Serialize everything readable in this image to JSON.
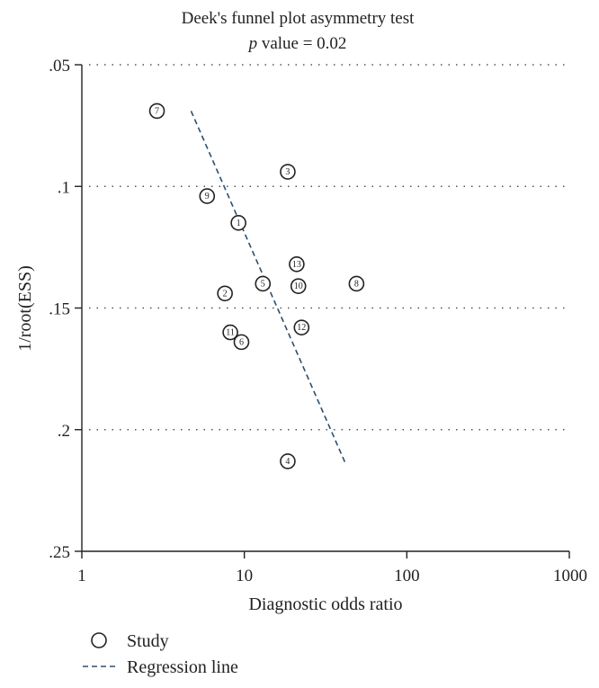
{
  "chart_data": {
    "type": "scatter",
    "title": "Deek's funnel plot asymmetry test",
    "subtitle_italic": "p",
    "subtitle_rest": " value = 0.02",
    "xlabel": "Diagnostic odds ratio",
    "ylabel": "1/root(ESS)",
    "x_scale": "log",
    "x_ticks": [
      1,
      10,
      100,
      1000
    ],
    "x_tick_labels": [
      "1",
      "10",
      "100",
      "1000"
    ],
    "xlim": [
      1,
      1000
    ],
    "y_reversed": true,
    "ylim": [
      0.05,
      0.25
    ],
    "y_ticks": [
      0.05,
      0.1,
      0.15,
      0.2,
      0.25
    ],
    "y_tick_labels": [
      ".05",
      ".1",
      ".15",
      ".2",
      ".25"
    ],
    "grid": "horizontal-dotted",
    "studies": [
      {
        "label": "1",
        "x": 9.2,
        "y": 0.115
      },
      {
        "label": "2",
        "x": 7.6,
        "y": 0.144
      },
      {
        "label": "3",
        "x": 18.5,
        "y": 0.094
      },
      {
        "label": "4",
        "x": 18.5,
        "y": 0.213
      },
      {
        "label": "5",
        "x": 13.0,
        "y": 0.14
      },
      {
        "label": "6",
        "x": 9.6,
        "y": 0.164
      },
      {
        "label": "7",
        "x": 2.9,
        "y": 0.069
      },
      {
        "label": "8",
        "x": 49.0,
        "y": 0.14
      },
      {
        "label": "9",
        "x": 5.9,
        "y": 0.104
      },
      {
        "label": "10",
        "x": 21.5,
        "y": 0.141
      },
      {
        "label": "11",
        "x": 8.2,
        "y": 0.16
      },
      {
        "label": "12",
        "x": 22.5,
        "y": 0.158
      },
      {
        "label": "13",
        "x": 21.0,
        "y": 0.132
      }
    ],
    "regression_line": {
      "x": [
        4.7,
        42.0
      ],
      "y": [
        0.069,
        0.214
      ]
    },
    "colors": {
      "regression": "#2d4f6e",
      "points": "#222222"
    },
    "legend": {
      "position": "bottom-left",
      "items": [
        {
          "label": "Study",
          "marker": "circle"
        },
        {
          "label": "Regression line",
          "marker": "dashed-line"
        }
      ]
    }
  }
}
